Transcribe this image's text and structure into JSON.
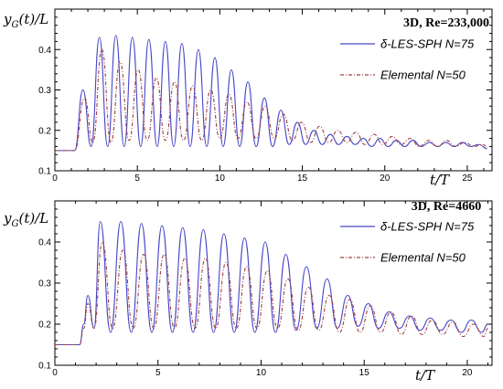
{
  "chart_data": [
    {
      "type": "line",
      "title": "3D, Re=233,000",
      "xlabel": "t/T",
      "ylabel": "y_G(t)/L",
      "xlim": [
        0,
        26.5
      ],
      "ylim": [
        0.1,
        0.5
      ],
      "xticks": [
        "0",
        "5",
        "10",
        "15",
        "20",
        "25"
      ],
      "xtick_values": [
        0,
        5,
        10,
        15,
        20,
        25
      ],
      "yticks": [
        "0.1",
        "0.2",
        "0.3",
        "0.4"
      ],
      "ytick_values": [
        0.1,
        0.2,
        0.3,
        0.4
      ],
      "legend_position": "top-right",
      "series": [
        {
          "name": "δ-LES-SPH N=75",
          "color": "#4747c8",
          "style": "solid",
          "x": [
            0,
            1.0,
            1.2,
            1.7,
            2.2,
            2.7,
            3.2,
            3.7,
            4.2,
            4.7,
            5.2,
            5.7,
            6.2,
            6.7,
            7.2,
            7.7,
            8.2,
            8.7,
            9.2,
            9.7,
            10.2,
            10.7,
            11.2,
            11.7,
            12.2,
            12.7,
            13.2,
            13.7,
            14.2,
            14.7,
            15.2,
            15.7,
            16.2,
            16.7,
            17.2,
            17.7,
            18.2,
            18.7,
            19.2,
            19.7,
            20.2,
            20.7,
            21.2,
            21.7,
            22.2,
            22.7,
            23.2,
            23.7,
            24.2,
            24.7,
            25.2,
            25.7,
            26.2
          ],
          "y": [
            0.15,
            0.15,
            0.15,
            0.3,
            0.16,
            0.43,
            0.16,
            0.435,
            0.16,
            0.43,
            0.16,
            0.425,
            0.16,
            0.42,
            0.16,
            0.415,
            0.16,
            0.4,
            0.16,
            0.38,
            0.16,
            0.35,
            0.16,
            0.32,
            0.16,
            0.28,
            0.16,
            0.25,
            0.165,
            0.22,
            0.165,
            0.2,
            0.165,
            0.19,
            0.165,
            0.185,
            0.165,
            0.18,
            0.16,
            0.18,
            0.16,
            0.175,
            0.16,
            0.175,
            0.16,
            0.17,
            0.16,
            0.17,
            0.16,
            0.17,
            0.16,
            0.165,
            0.155
          ]
        },
        {
          "name": "Elemental  N=50",
          "color": "#a04040",
          "style": "dashdot",
          "x": [
            0,
            1.0,
            1.2,
            1.8,
            2.3,
            2.85,
            3.4,
            3.95,
            4.5,
            5.05,
            5.6,
            6.15,
            6.7,
            7.25,
            7.8,
            8.35,
            8.9,
            9.45,
            10.0,
            10.55,
            11.1,
            11.65,
            12.2,
            12.75,
            13.3,
            13.85,
            14.4,
            14.95,
            15.5,
            16.05,
            16.6,
            17.15,
            17.7,
            18.25,
            18.8,
            19.35,
            19.9,
            20.45,
            21.0,
            21.55,
            22.1,
            22.65,
            23.2,
            23.75,
            24.3,
            24.85,
            25.4,
            25.95,
            26.2
          ],
          "y": [
            0.15,
            0.15,
            0.15,
            0.28,
            0.17,
            0.4,
            0.17,
            0.37,
            0.175,
            0.35,
            0.175,
            0.33,
            0.175,
            0.32,
            0.175,
            0.31,
            0.175,
            0.3,
            0.18,
            0.29,
            0.18,
            0.27,
            0.18,
            0.26,
            0.18,
            0.24,
            0.175,
            0.22,
            0.17,
            0.21,
            0.17,
            0.2,
            0.17,
            0.195,
            0.165,
            0.19,
            0.165,
            0.185,
            0.165,
            0.18,
            0.16,
            0.175,
            0.16,
            0.175,
            0.16,
            0.17,
            0.16,
            0.165,
            0.16
          ]
        }
      ]
    },
    {
      "type": "line",
      "title": "3D, Re=4660",
      "xlabel": "t/T",
      "ylabel": "y_G(t)/L",
      "xlim": [
        0,
        21.2
      ],
      "ylim": [
        0.1,
        0.5
      ],
      "xticks": [
        "0",
        "5",
        "10",
        "15",
        "20"
      ],
      "xtick_values": [
        0,
        5,
        10,
        15,
        20
      ],
      "yticks": [
        "0.1",
        "0.2",
        "0.3",
        "0.4"
      ],
      "ytick_values": [
        0.1,
        0.2,
        0.3,
        0.4
      ],
      "legend_position": "top-right",
      "series": [
        {
          "name": "δ-LES-SPH N=75",
          "color": "#4747c8",
          "style": "solid",
          "x": [
            0,
            1.2,
            1.4,
            1.6,
            1.9,
            2.2,
            2.7,
            3.2,
            3.7,
            4.2,
            4.7,
            5.2,
            5.7,
            6.2,
            6.7,
            7.2,
            7.7,
            8.2,
            8.7,
            9.2,
            9.7,
            10.2,
            10.7,
            11.2,
            11.7,
            12.2,
            12.7,
            13.2,
            13.7,
            14.2,
            14.7,
            15.2,
            15.7,
            16.2,
            16.7,
            17.2,
            17.7,
            18.2,
            18.7,
            19.2,
            19.7,
            20.2,
            20.7,
            21.0
          ],
          "y": [
            0.15,
            0.15,
            0.2,
            0.27,
            0.19,
            0.45,
            0.18,
            0.45,
            0.18,
            0.445,
            0.18,
            0.44,
            0.18,
            0.435,
            0.18,
            0.43,
            0.18,
            0.42,
            0.18,
            0.41,
            0.18,
            0.4,
            0.18,
            0.37,
            0.185,
            0.34,
            0.19,
            0.31,
            0.19,
            0.27,
            0.195,
            0.25,
            0.19,
            0.23,
            0.19,
            0.22,
            0.185,
            0.215,
            0.185,
            0.21,
            0.18,
            0.21,
            0.18,
            0.2
          ]
        },
        {
          "name": "Elemental  N=50",
          "color": "#a04040",
          "style": "dashdot",
          "x": [
            0,
            1.2,
            1.4,
            1.6,
            1.9,
            2.3,
            2.8,
            3.3,
            3.8,
            4.3,
            4.8,
            5.3,
            5.8,
            6.3,
            6.8,
            7.3,
            7.8,
            8.3,
            8.8,
            9.3,
            9.8,
            10.3,
            10.8,
            11.3,
            11.8,
            12.3,
            12.8,
            13.3,
            13.8,
            14.3,
            14.8,
            15.3,
            15.8,
            16.3,
            16.8,
            17.3,
            17.8,
            18.3,
            18.8,
            19.3,
            19.8,
            20.3,
            20.8,
            21.0
          ],
          "y": [
            0.15,
            0.15,
            0.19,
            0.25,
            0.19,
            0.4,
            0.19,
            0.38,
            0.19,
            0.37,
            0.19,
            0.37,
            0.19,
            0.36,
            0.19,
            0.36,
            0.19,
            0.35,
            0.19,
            0.34,
            0.19,
            0.33,
            0.19,
            0.31,
            0.185,
            0.29,
            0.185,
            0.27,
            0.18,
            0.26,
            0.18,
            0.245,
            0.18,
            0.23,
            0.175,
            0.22,
            0.175,
            0.21,
            0.175,
            0.205,
            0.17,
            0.2,
            0.17,
            0.19
          ]
        }
      ]
    }
  ]
}
